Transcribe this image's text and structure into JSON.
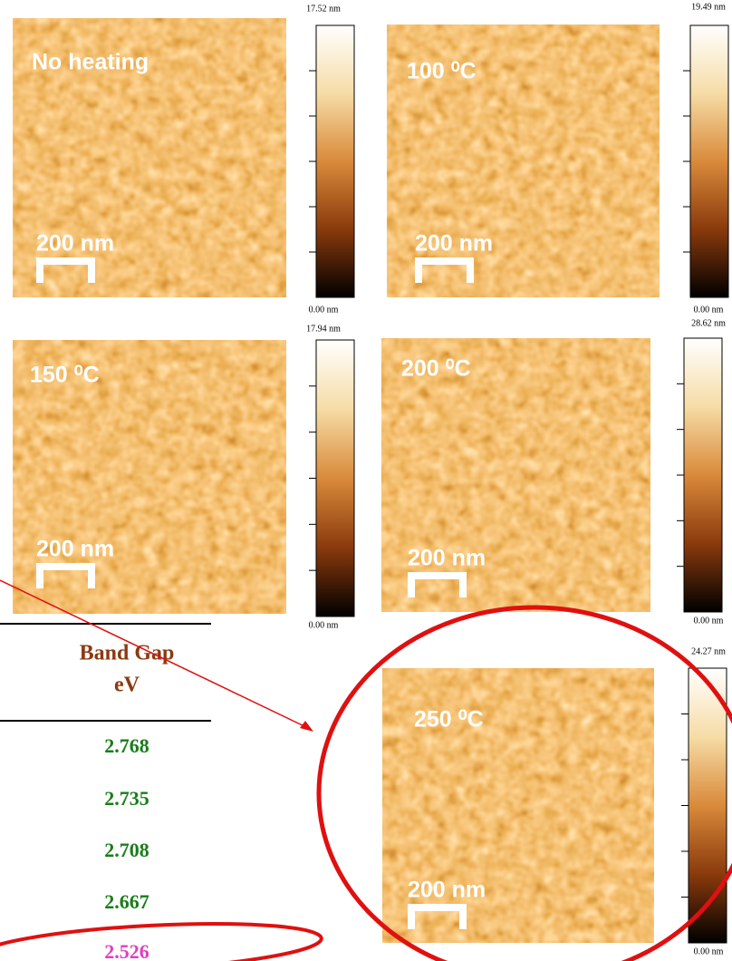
{
  "panels": [
    {
      "label": "No heating",
      "scale_bar": "200 nm",
      "colorbar_max": "17.52 nm",
      "colorbar_min": "0.00 nm"
    },
    {
      "label": "100 ⁰C",
      "scale_bar": "200 nm",
      "colorbar_max": "19.49 nm",
      "colorbar_min": "0.00 nm"
    },
    {
      "label": "150 ⁰C",
      "scale_bar": "200 nm",
      "colorbar_max": "17.94 nm",
      "colorbar_min": "0.00 nm"
    },
    {
      "label": "200 ⁰C",
      "scale_bar": "200 nm",
      "colorbar_max": "28.62 nm",
      "colorbar_min": "0.00 nm"
    },
    {
      "label": "250 ⁰C",
      "scale_bar": "200 nm",
      "colorbar_max": "24.27 nm",
      "colorbar_min": "0.00 nm"
    }
  ],
  "table": {
    "header": "Band Gap",
    "unit": "eV",
    "rows": [
      2.768,
      2.735,
      2.708,
      2.667,
      2.526
    ]
  }
}
